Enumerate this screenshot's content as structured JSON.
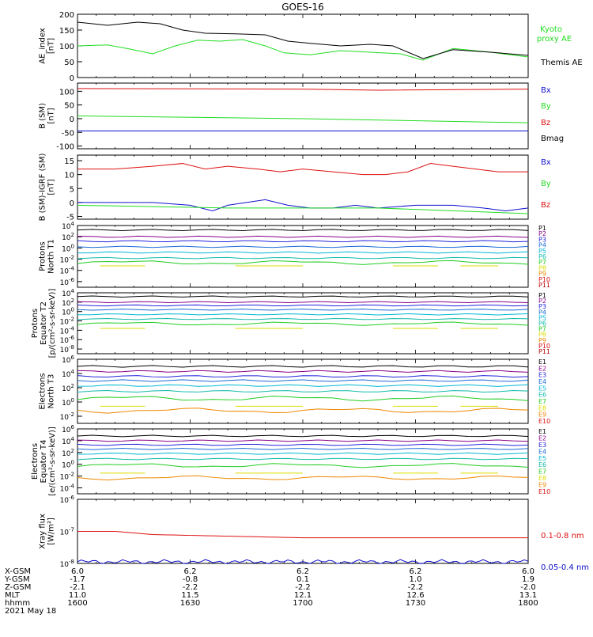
{
  "figure": {
    "title": "GOES-16",
    "footer": {
      "row_labels": [
        "X-GSM",
        "Y-GSM",
        "Z-GSM",
        "MLT",
        "hhmm",
        "2021 May 18"
      ],
      "columns": [
        {
          "x": "6.0",
          "y": "-1.7",
          "z": "-2.1",
          "mlt": "11.0",
          "hhmm": "1600"
        },
        {
          "x": "6.2",
          "y": "-0.8",
          "z": "-2.2",
          "mlt": "11.5",
          "hhmm": "1630"
        },
        {
          "x": "6.2",
          "y": "0.1",
          "z": "-2.2",
          "mlt": "12.1",
          "hhmm": "1700"
        },
        {
          "x": "6.2",
          "y": "1.0",
          "z": "-2.2",
          "mlt": "12.6",
          "hhmm": "1730"
        },
        {
          "x": "6.0",
          "y": "1.9",
          "z": "-2.0",
          "mlt": "13.1",
          "hhmm": "1800"
        }
      ]
    }
  },
  "colors": {
    "black": "#000000",
    "green": "#22dd22",
    "blue": "#1010cc",
    "red": "#dd1111",
    "p_colors": [
      "#000000",
      "#880088",
      "#2222dd",
      "#1a6bd8",
      "#00b8d4",
      "#11bbaa",
      "#22cc22",
      "#dddd00",
      "#ee8800",
      "#dd1111",
      "#bb0000"
    ],
    "e_colors": [
      "#000000",
      "#880088",
      "#2222dd",
      "#1a6bd8",
      "#00b8d4",
      "#11bbaa",
      "#22cc22",
      "#dddd00",
      "#ee8800",
      "#dd1111"
    ]
  },
  "chart_data": [
    {
      "id": "ae",
      "type": "line",
      "ylabel_lines": [
        "AE_index",
        "[nT]"
      ],
      "yticks": [
        "0",
        "50",
        "100",
        "150",
        "200"
      ],
      "ylim": [
        0,
        200
      ],
      "series": [
        {
          "name": "Kyoto proxy AE",
          "label_lines": [
            "Kyoto",
            "proxy AE"
          ],
          "color": "#22dd22",
          "t": [
            0,
            8,
            14,
            20,
            26,
            32,
            38,
            44,
            50,
            55,
            62,
            70,
            78,
            86,
            92,
            100,
            110,
            120
          ],
          "values": [
            100,
            103,
            90,
            75,
            100,
            118,
            115,
            120,
            100,
            78,
            72,
            85,
            80,
            75,
            55,
            92,
            80,
            65
          ]
        },
        {
          "name": "Themis AE",
          "label_lines": [
            "Themis AE"
          ],
          "color": "#000000",
          "t": [
            0,
            8,
            16,
            22,
            28,
            34,
            42,
            50,
            56,
            62,
            70,
            78,
            84,
            88,
            92,
            100,
            110,
            120
          ],
          "values": [
            175,
            165,
            175,
            170,
            150,
            140,
            138,
            135,
            115,
            108,
            100,
            105,
            100,
            80,
            60,
            88,
            80,
            70
          ]
        }
      ]
    },
    {
      "id": "b_sm",
      "type": "line",
      "ylabel_lines": [
        "B (SM)",
        "[nT]"
      ],
      "yticks": [
        "-100",
        "-50",
        "0",
        "50",
        "100"
      ],
      "ylim": [
        -110,
        130
      ],
      "series": [
        {
          "name": "Bx",
          "color": "#1010cc",
          "t": [
            0,
            120
          ],
          "values": [
            -45,
            -45
          ]
        },
        {
          "name": "By",
          "color": "#22dd22",
          "t": [
            0,
            60,
            120
          ],
          "values": [
            10,
            0,
            -15
          ]
        },
        {
          "name": "Bz",
          "color": "#dd1111",
          "t": [
            0,
            60,
            80,
            120
          ],
          "values": [
            110,
            108,
            104,
            108
          ]
        },
        {
          "name": "Bmag",
          "color": "#000000",
          "t": [],
          "values": []
        }
      ]
    },
    {
      "id": "b_igrf",
      "type": "line",
      "ylabel_lines": [
        "B (SM)-IGRF (SM)",
        "[nT]"
      ],
      "yticks": [
        "-5",
        "0",
        "5",
        "10",
        "15"
      ],
      "ylim": [
        -6,
        17
      ],
      "series": [
        {
          "name": "Bx",
          "color": "#1010cc",
          "t": [
            0,
            10,
            20,
            30,
            36,
            40,
            50,
            56,
            62,
            68,
            74,
            80,
            90,
            100,
            108,
            114,
            120
          ],
          "values": [
            0,
            0,
            0,
            -1,
            -3,
            -1,
            1,
            -1,
            -2,
            -2,
            -1,
            -2,
            -1,
            -1,
            -2,
            -3,
            -2
          ]
        },
        {
          "name": "By",
          "color": "#22dd22",
          "t": [
            0,
            40,
            80,
            100,
            120
          ],
          "values": [
            -1,
            -2,
            -2,
            -3,
            -4
          ]
        },
        {
          "name": "Bz",
          "color": "#dd1111",
          "t": [
            0,
            10,
            20,
            28,
            34,
            40,
            48,
            54,
            60,
            68,
            76,
            82,
            88,
            94,
            100,
            106,
            112,
            120
          ],
          "values": [
            12,
            12,
            13,
            14,
            12,
            13,
            12,
            11,
            12,
            11,
            10,
            10,
            11,
            14,
            13,
            12,
            11,
            11
          ]
        }
      ]
    },
    {
      "id": "protons_t1",
      "type": "line",
      "log": true,
      "ylabel_lines": [
        "Protons",
        "North T1"
      ],
      "yticks": [
        "10^4",
        "10^2",
        "10^0",
        "10^-2",
        "10^-4",
        "10^-6"
      ],
      "ylim_exp": [
        -7,
        4
      ],
      "channels": [
        "P1",
        "P2",
        "P3",
        "P4",
        "P5",
        "P6",
        "P7",
        "P8",
        "P9",
        "P10",
        "P11"
      ],
      "levels_exp": [
        3.2,
        2.0,
        1.2,
        0.2,
        -0.8,
        -1.8,
        -2.6,
        -3.2,
        null,
        null,
        null
      ]
    },
    {
      "id": "protons_t2",
      "type": "line",
      "log": true,
      "ylabel_lines": [
        "Protons",
        "Equator T2",
        "[p/(cm²-s-sr-keV)]"
      ],
      "yticks": [
        "10^4",
        "10^2",
        "10^0",
        "10^-2",
        "10^-4",
        "10^-6",
        "10^-8"
      ],
      "ylim_exp": [
        -9,
        4
      ],
      "channels": [
        "P1",
        "P2",
        "P3",
        "P4",
        "P5",
        "P6",
        "P7",
        "P8",
        "P9",
        "P10",
        "P11"
      ],
      "levels_exp": [
        3.2,
        2.0,
        1.3,
        0.4,
        -0.6,
        -1.6,
        -2.6,
        -3.6,
        null,
        null,
        null
      ]
    },
    {
      "id": "electrons_t3",
      "type": "line",
      "log": true,
      "ylabel_lines": [
        "Electrons",
        "North T3"
      ],
      "yticks": [
        "10^6",
        "10^4",
        "10^2",
        "10^0",
        "10^-2"
      ],
      "ylim_exp": [
        -3,
        6
      ],
      "channels": [
        "E1",
        "E2",
        "E3",
        "E4",
        "E5",
        "E6",
        "E7",
        "E8",
        "E9",
        "E10"
      ],
      "levels_exp": [
        5.0,
        4.3,
        3.6,
        3.0,
        2.3,
        1.5,
        0.5,
        -0.6,
        -1.2,
        null
      ]
    },
    {
      "id": "electrons_t4",
      "type": "line",
      "log": true,
      "ylabel_lines": [
        "Electrons",
        "Equator T4",
        "[e/(cm²-s-sr-keV)]"
      ],
      "yticks": [
        "10^6",
        "10^4",
        "10^2",
        "10^0",
        "10^-2",
        "10^-4"
      ],
      "ylim_exp": [
        -5,
        6
      ],
      "channels": [
        "E1",
        "E2",
        "E3",
        "E4",
        "E5",
        "E6",
        "E7",
        "E8",
        "E9",
        "E10"
      ],
      "levels_exp": [
        4.8,
        4.0,
        3.3,
        2.6,
        1.8,
        0.9,
        -0.2,
        -1.5,
        -2.3,
        null
      ]
    },
    {
      "id": "xray",
      "type": "line",
      "log": true,
      "ylabel_lines": [
        "Xray flux",
        "[W/m²]"
      ],
      "yticks": [
        "10^-6",
        "10^-7",
        "10^-8"
      ],
      "ylim_exp": [
        -8,
        -6
      ],
      "series": [
        {
          "name": "0.1-0.8 nm",
          "color": "#dd1111",
          "t": [
            0,
            10,
            20,
            40,
            60,
            80,
            100,
            120
          ],
          "values_exp": [
            -7.0,
            -7.0,
            -7.1,
            -7.15,
            -7.2,
            -7.2,
            -7.2,
            -7.2
          ]
        },
        {
          "name": "0.05-0.4 nm",
          "color": "#1010cc",
          "t": [
            0,
            120
          ],
          "values_exp": [
            -7.95,
            -7.95
          ]
        }
      ]
    }
  ]
}
